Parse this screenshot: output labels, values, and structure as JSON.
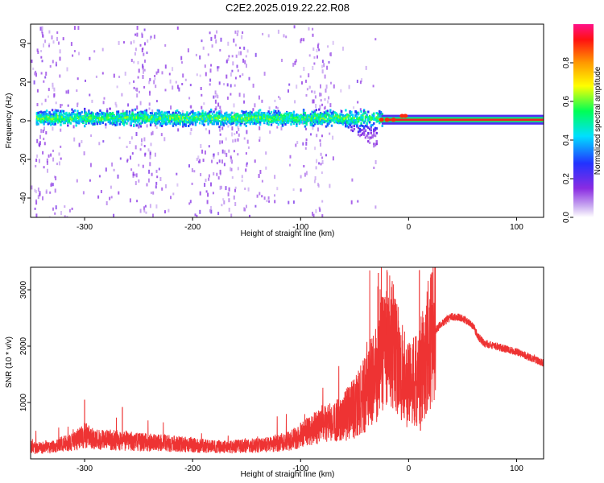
{
  "title": "C2E2.2025.019.22.22.R08",
  "colors": {
    "snr_line": "#ee3333",
    "track_core": "#ee2222",
    "background": "#ffffff",
    "axes": "#000000"
  },
  "chart_data": [
    {
      "type": "heatmap",
      "name": "spectrogram",
      "xlabel": "Height of straight line (km)",
      "ylabel": "Frequency (Hz)",
      "xlim": [
        -350,
        125
      ],
      "ylim": [
        -50,
        50
      ],
      "xticks": [
        -300,
        -200,
        -100,
        0,
        100
      ],
      "yticks": [
        -40,
        -20,
        0,
        20,
        40
      ],
      "xtick_labels": [
        "-300",
        "-200",
        "-100",
        "0",
        "100"
      ],
      "ytick_labels": [
        "-40",
        "-20",
        "0",
        "20",
        "40"
      ],
      "colorbar": {
        "label": "Normalized spectral amplitude",
        "range": [
          0,
          1
        ],
        "ticks": [
          0,
          0.2,
          0.4,
          0.6,
          0.8
        ],
        "tick_labels": [
          "0.0",
          "0.2",
          "0.4",
          "0.6",
          "0.8"
        ],
        "colormap": "rainbow (white, violet, blue, cyan, green, yellow, orange, red, magenta)"
      },
      "features": {
        "main_band_center_hz": 2,
        "main_band_halfwidth_hz": 5,
        "dip_region_x_km": [
          -70,
          -30
        ],
        "dip_min_hz": -14,
        "steady_tone_x_km": [
          -25,
          125
        ],
        "steady_tone_hz": 0.5,
        "noise_columns_x_km": [
          -335,
          -245,
          -185,
          -160,
          -85
        ]
      }
    },
    {
      "type": "line",
      "name": "snr",
      "xlabel": "Height of straight line (km)",
      "ylabel": "SNR (10 * v/v)",
      "xlim": [
        -350,
        125
      ],
      "ylim": [
        0,
        3400
      ],
      "xticks": [
        -300,
        -200,
        -100,
        0,
        100
      ],
      "yticks": [
        1000,
        2000,
        3000
      ],
      "xtick_labels": [
        "-300",
        "-200",
        "-100",
        "0",
        "100"
      ],
      "ytick_labels": [
        "1000",
        "2000",
        "3000"
      ],
      "x": [
        -350,
        -330,
        -310,
        -300,
        -290,
        -270,
        -250,
        -230,
        -210,
        -190,
        -170,
        -150,
        -130,
        -110,
        -100,
        -90,
        -80,
        -70,
        -60,
        -50,
        -40,
        -30,
        -25,
        -20,
        -15,
        -10,
        -5,
        0,
        5,
        10,
        15,
        20,
        30,
        40,
        50,
        60,
        65,
        70,
        80,
        90,
        100,
        110,
        125
      ],
      "y": [
        180,
        220,
        300,
        420,
        350,
        330,
        300,
        280,
        260,
        230,
        210,
        230,
        250,
        320,
        420,
        520,
        600,
        650,
        750,
        900,
        1150,
        1600,
        2000,
        2200,
        2000,
        1700,
        1500,
        1300,
        1350,
        1500,
        1800,
        2150,
        2400,
        2520,
        2500,
        2350,
        2150,
        2050,
        2000,
        1950,
        1900,
        1820,
        1700
      ],
      "spikes": [
        {
          "x": -300,
          "y": 1050
        },
        {
          "x": -265,
          "y": 920
        },
        {
          "x": -28,
          "y": 3300
        },
        {
          "x": -20,
          "y": 3350
        },
        {
          "x": 10,
          "y": 3350
        },
        {
          "x": 11,
          "y": 500
        }
      ]
    }
  ]
}
